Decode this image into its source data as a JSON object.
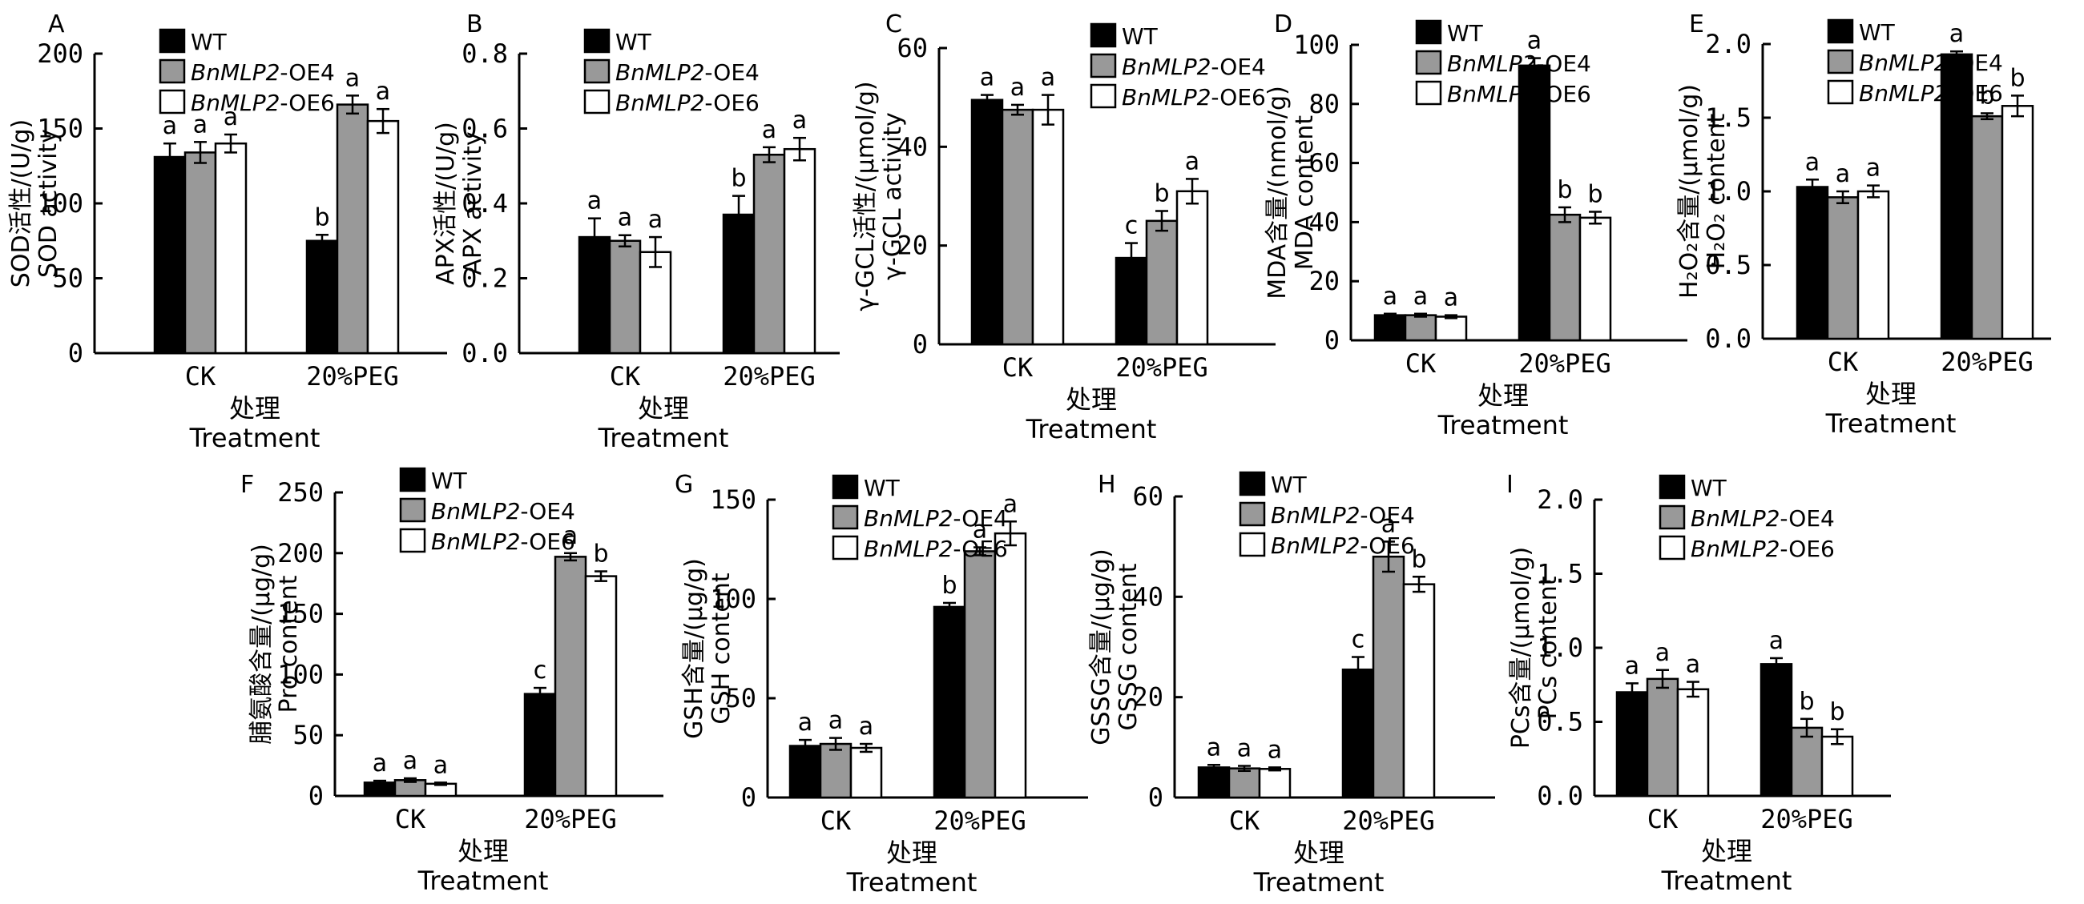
{
  "chart_data": [
    {
      "type": "bar",
      "panel": "A",
      "ylabel_cn": "SOD活性/(U/g)",
      "ylabel_en": "SOD activity",
      "xlabel_cn": "处理",
      "xlabel_en": "Treatment",
      "categories": [
        "CK",
        "20%PEG"
      ],
      "ylim": [
        0,
        200
      ],
      "yticks": [
        "0",
        "50",
        "100",
        "150",
        "200"
      ],
      "series": [
        {
          "name": "WT",
          "values": [
            131,
            75
          ],
          "errors": [
            9,
            4
          ],
          "letters": [
            "a",
            "b"
          ]
        },
        {
          "name": "BnMLP2-OE4",
          "values": [
            134,
            166
          ],
          "errors": [
            7,
            6
          ],
          "letters": [
            "a",
            "a"
          ]
        },
        {
          "name": "BnMLP2-OE6",
          "values": [
            140,
            155
          ],
          "errors": [
            6,
            8
          ],
          "letters": [
            "a",
            "a"
          ]
        }
      ],
      "legend": "top-left"
    },
    {
      "type": "bar",
      "panel": "B",
      "ylabel_cn": "APX活性/(U/g)",
      "ylabel_en": "APX activity",
      "xlabel_cn": "处理",
      "xlabel_en": "Treatment",
      "categories": [
        "CK",
        "20%PEG"
      ],
      "ylim": [
        0,
        0.8
      ],
      "yticks": [
        "0.0",
        "0.2",
        "0.4",
        "0.6",
        "0.8"
      ],
      "series": [
        {
          "name": "WT",
          "values": [
            0.31,
            0.37
          ],
          "errors": [
            0.05,
            0.05
          ],
          "letters": [
            "a",
            "b"
          ]
        },
        {
          "name": "BnMLP2-OE4",
          "values": [
            0.3,
            0.53
          ],
          "errors": [
            0.015,
            0.02
          ],
          "letters": [
            "a",
            "a"
          ]
        },
        {
          "name": "BnMLP2-OE6",
          "values": [
            0.27,
            0.545
          ],
          "errors": [
            0.04,
            0.03
          ],
          "letters": [
            "a",
            "a"
          ]
        }
      ],
      "legend": "top-left"
    },
    {
      "type": "bar",
      "panel": "C",
      "ylabel_cn": "γ-GCL活性/(μmol/g)",
      "ylabel_en": "γ-GCL activity",
      "xlabel_cn": "处理",
      "xlabel_en": "Treatment",
      "categories": [
        "CK",
        "20%PEG"
      ],
      "ylim": [
        0,
        60
      ],
      "yticks": [
        "0",
        "20",
        "40",
        "60"
      ],
      "series": [
        {
          "name": "WT",
          "values": [
            49.5,
            17.5
          ],
          "errors": [
            1,
            3
          ],
          "letters": [
            "a",
            "c"
          ]
        },
        {
          "name": "BnMLP2-OE4",
          "values": [
            47.5,
            25
          ],
          "errors": [
            1,
            2
          ],
          "letters": [
            "a",
            "b"
          ]
        },
        {
          "name": "BnMLP2-OE6",
          "values": [
            47.5,
            31
          ],
          "errors": [
            3,
            2.5
          ],
          "letters": [
            "a",
            "a"
          ]
        }
      ],
      "legend": "top-right"
    },
    {
      "type": "bar",
      "panel": "D",
      "ylabel_cn": "MDA含量/(nmol/g)",
      "ylabel_en": "MDA content",
      "xlabel_cn": "处理",
      "xlabel_en": "Treatment",
      "categories": [
        "CK",
        "20%PEG"
      ],
      "ylim": [
        0,
        100
      ],
      "yticks": [
        "0",
        "20",
        "40",
        "60",
        "80",
        "100"
      ],
      "series": [
        {
          "name": "WT",
          "values": [
            8.5,
            93
          ],
          "errors": [
            0.5,
            2.5
          ],
          "letters": [
            "a",
            "a"
          ]
        },
        {
          "name": "BnMLP2-OE4",
          "values": [
            8.5,
            42.5
          ],
          "errors": [
            0.5,
            2.5
          ],
          "letters": [
            "a",
            "b"
          ]
        },
        {
          "name": "BnMLP2-OE6",
          "values": [
            8,
            41.5
          ],
          "errors": [
            0.5,
            2
          ],
          "letters": [
            "a",
            "b"
          ]
        }
      ],
      "legend": "top-left"
    },
    {
      "type": "bar",
      "panel": "E",
      "ylabel_cn": "H₂O₂含量/(μmol/g)",
      "ylabel_en": "H₂O₂ content",
      "xlabel_cn": "处理",
      "xlabel_en": "Treatment",
      "categories": [
        "CK",
        "20%PEG"
      ],
      "ylim": [
        0,
        2.0
      ],
      "yticks": [
        "0.0",
        "0.5",
        "1.0",
        "1.5",
        "2.0"
      ],
      "series": [
        {
          "name": "WT",
          "values": [
            1.03,
            1.93
          ],
          "errors": [
            0.05,
            0.02
          ],
          "letters": [
            "a",
            "a"
          ]
        },
        {
          "name": "BnMLP2-OE4",
          "values": [
            0.96,
            1.51
          ],
          "errors": [
            0.04,
            0.02
          ],
          "letters": [
            "a",
            "b"
          ]
        },
        {
          "name": "BnMLP2-OE6",
          "values": [
            1.0,
            1.58
          ],
          "errors": [
            0.04,
            0.07
          ],
          "letters": [
            "a",
            "b"
          ]
        }
      ],
      "legend": "top-left"
    },
    {
      "type": "bar",
      "panel": "F",
      "ylabel_cn": "脯氨酸含量/(μg/g)",
      "ylabel_en": "Pro content",
      "xlabel_cn": "处理",
      "xlabel_en": "Treatment",
      "categories": [
        "CK",
        "20%PEG"
      ],
      "ylim": [
        0,
        250
      ],
      "yticks": [
        "0",
        "50",
        "100",
        "150",
        "200",
        "250"
      ],
      "series": [
        {
          "name": "WT",
          "values": [
            11,
            84
          ],
          "errors": [
            1.5,
            5
          ],
          "letters": [
            "a",
            "c"
          ]
        },
        {
          "name": "BnMLP2-OE4",
          "values": [
            13,
            197
          ],
          "errors": [
            1.5,
            3
          ],
          "letters": [
            "a",
            "a"
          ]
        },
        {
          "name": "BnMLP2-OE6",
          "values": [
            10,
            181
          ],
          "errors": [
            1,
            4
          ],
          "letters": [
            "a",
            "b"
          ]
        }
      ],
      "legend": "top-left"
    },
    {
      "type": "bar",
      "panel": "G",
      "ylabel_cn": "GSH含量/(μg/g)",
      "ylabel_en": "GSH content",
      "xlabel_cn": "处理",
      "xlabel_en": "Treatment",
      "categories": [
        "CK",
        "20%PEG"
      ],
      "ylim": [
        0,
        150
      ],
      "yticks": [
        "0",
        "50",
        "100",
        "150"
      ],
      "series": [
        {
          "name": "WT",
          "values": [
            26,
            96
          ],
          "errors": [
            3,
            2
          ],
          "letters": [
            "a",
            "b"
          ]
        },
        {
          "name": "BnMLP2-OE4",
          "values": [
            27,
            124
          ],
          "errors": [
            3,
            2
          ],
          "letters": [
            "a",
            "a"
          ]
        },
        {
          "name": "BnMLP2-OE6",
          "values": [
            25,
            133
          ],
          "errors": [
            2,
            6
          ],
          "letters": [
            "a",
            "a"
          ]
        }
      ],
      "legend": "top-left"
    },
    {
      "type": "bar",
      "panel": "H",
      "ylabel_cn": "GSSG含量/(μg/g)",
      "ylabel_en": "GSSG content",
      "xlabel_cn": "处理",
      "xlabel_en": "Treatment",
      "categories": [
        "CK",
        "20%PEG"
      ],
      "ylim": [
        0,
        60
      ],
      "yticks": [
        "0",
        "20",
        "40",
        "60"
      ],
      "series": [
        {
          "name": "WT",
          "values": [
            6,
            25.5
          ],
          "errors": [
            0.5,
            2.5
          ],
          "letters": [
            "a",
            "c"
          ]
        },
        {
          "name": "BnMLP2-OE4",
          "values": [
            5.8,
            48
          ],
          "errors": [
            0.5,
            3
          ],
          "letters": [
            "a",
            "a"
          ]
        },
        {
          "name": "BnMLP2-OE6",
          "values": [
            5.7,
            42.5
          ],
          "errors": [
            0.3,
            1.5
          ],
          "letters": [
            "a",
            "b"
          ]
        }
      ],
      "legend": "top-left"
    },
    {
      "type": "bar",
      "panel": "I",
      "ylabel_cn": "PCs含量/(μmol/g)",
      "ylabel_en": "PCs content",
      "xlabel_cn": "处理",
      "xlabel_en": "Treatment",
      "categories": [
        "CK",
        "20%PEG"
      ],
      "ylim": [
        0,
        2.0
      ],
      "yticks": [
        "0.0",
        "0.5",
        "1.0",
        "1.5",
        "2.0"
      ],
      "series": [
        {
          "name": "WT",
          "values": [
            0.7,
            0.89
          ],
          "errors": [
            0.06,
            0.04
          ],
          "letters": [
            "a",
            "a"
          ]
        },
        {
          "name": "BnMLP2-OE4",
          "values": [
            0.79,
            0.46
          ],
          "errors": [
            0.06,
            0.06
          ],
          "letters": [
            "a",
            "b"
          ]
        },
        {
          "name": "BnMLP2-OE6",
          "values": [
            0.72,
            0.4
          ],
          "errors": [
            0.05,
            0.05
          ],
          "letters": [
            "a",
            "b"
          ]
        }
      ],
      "legend": "top-left"
    }
  ],
  "colors": {
    "WT": "#000000",
    "BnMLP2-OE4": "#999999",
    "BnMLP2-OE6": "#ffffff"
  }
}
